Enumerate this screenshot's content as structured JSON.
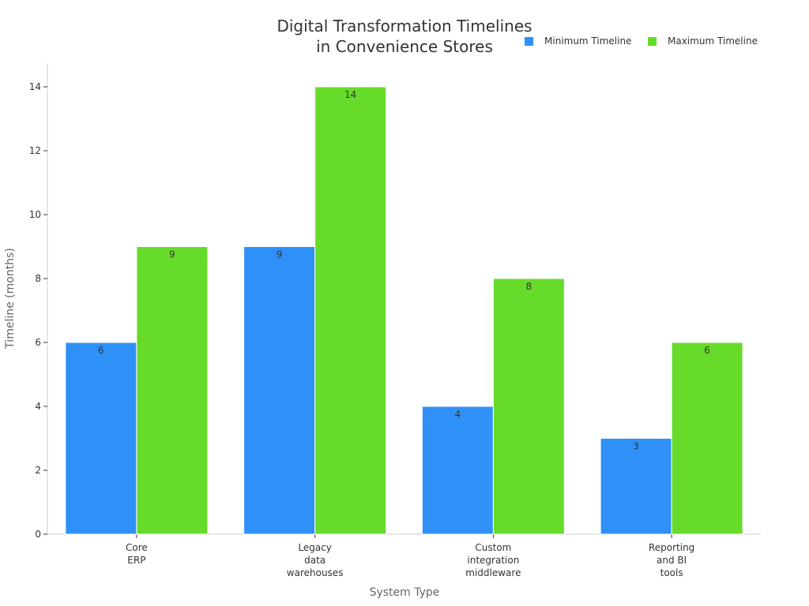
{
  "chart_data": {
    "type": "bar",
    "title_lines": [
      "Digital Transformation Timelines",
      "in Convenience Stores"
    ],
    "xlabel": "System Type",
    "ylabel": "Timeline (months)",
    "categories": [
      [
        "Core",
        "ERP"
      ],
      [
        "Legacy",
        "data",
        "warehouses"
      ],
      [
        "Custom",
        "integration",
        "middleware"
      ],
      [
        "Reporting",
        "and BI",
        "tools"
      ]
    ],
    "series": [
      {
        "name": "Minimum Timeline",
        "color": "#2f91f7",
        "values": [
          6,
          9,
          4,
          3
        ]
      },
      {
        "name": "Maximum Timeline",
        "color": "#67db2a",
        "values": [
          9,
          14,
          8,
          6
        ]
      }
    ],
    "ylim": [
      0,
      14.7
    ],
    "yticks": [
      0,
      2,
      4,
      6,
      8,
      10,
      12,
      14
    ],
    "grid": false,
    "legend": "top-right"
  }
}
